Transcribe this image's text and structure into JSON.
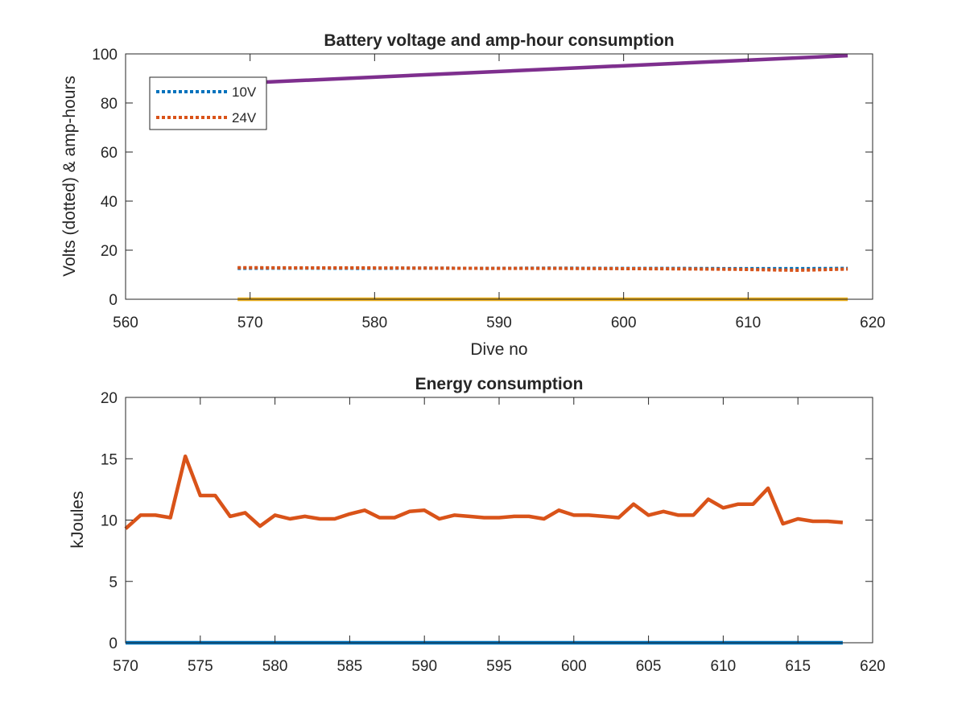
{
  "chart_data": [
    {
      "type": "line",
      "title": "Battery voltage and amp-hour consumption",
      "xlabel": "Dive no",
      "ylabel": "Volts (dotted) & amp-hours",
      "xlim": [
        560,
        620
      ],
      "ylim": [
        0,
        100
      ],
      "xticks": [
        560,
        570,
        580,
        590,
        600,
        610,
        620
      ],
      "yticks": [
        0,
        20,
        40,
        60,
        80,
        100
      ],
      "grid": false,
      "legend_position": "top-left",
      "series": [
        {
          "name": "10V",
          "style": "dotted",
          "color": "#0072BD",
          "in_legend": true,
          "x": [
            569,
            574,
            579,
            584,
            589,
            594,
            599,
            604,
            609,
            614,
            618
          ],
          "y": [
            12.6,
            12.7,
            12.6,
            12.7,
            12.6,
            12.7,
            12.6,
            12.6,
            12.5,
            12.5,
            12.6
          ]
        },
        {
          "name": "24V",
          "style": "dotted",
          "color": "#D95319",
          "in_legend": true,
          "x": [
            569,
            574,
            579,
            584,
            589,
            594,
            599,
            604,
            609,
            614,
            618
          ],
          "y": [
            12.9,
            12.8,
            12.8,
            12.7,
            12.6,
            12.6,
            12.5,
            12.4,
            12.2,
            11.8,
            12.3
          ]
        },
        {
          "style": "solid",
          "color": "#7E2F8E",
          "in_legend": false,
          "x": [
            569,
            618
          ],
          "y": [
            88,
            99.3
          ]
        },
        {
          "style": "solid",
          "color": "#EDB120",
          "in_legend": false,
          "x": [
            569,
            618
          ],
          "y": [
            0,
            0
          ]
        }
      ]
    },
    {
      "type": "line",
      "title": "Energy consumption",
      "xlabel": "",
      "ylabel": "kJoules",
      "xlim": [
        570,
        620
      ],
      "ylim": [
        0,
        20
      ],
      "xticks": [
        570,
        575,
        580,
        585,
        590,
        595,
        600,
        605,
        610,
        615,
        620
      ],
      "yticks": [
        0,
        5,
        10,
        15,
        20
      ],
      "grid": false,
      "series": [
        {
          "style": "solid",
          "color": "#D95319",
          "x": [
            570,
            571,
            572,
            573,
            574,
            575,
            576,
            577,
            578,
            579,
            580,
            581,
            582,
            583,
            584,
            585,
            586,
            587,
            588,
            589,
            590,
            591,
            592,
            593,
            594,
            595,
            596,
            597,
            598,
            599,
            600,
            601,
            602,
            603,
            604,
            605,
            606,
            607,
            608,
            609,
            610,
            611,
            612,
            613,
            614,
            615,
            616,
            617,
            618
          ],
          "y": [
            9.3,
            10.4,
            10.4,
            10.2,
            15.2,
            12.0,
            12.0,
            10.3,
            10.6,
            9.5,
            10.4,
            10.1,
            10.3,
            10.1,
            10.1,
            10.5,
            10.8,
            10.2,
            10.2,
            10.7,
            10.8,
            10.1,
            10.4,
            10.3,
            10.2,
            10.2,
            10.3,
            10.3,
            10.1,
            10.8,
            10.4,
            10.4,
            10.3,
            10.2,
            11.3,
            10.4,
            10.7,
            10.4,
            10.4,
            11.7,
            11.0,
            11.3,
            11.3,
            12.6,
            9.7,
            10.1,
            9.9,
            9.9,
            9.8
          ]
        },
        {
          "style": "solid",
          "color": "#0072BD",
          "x": [
            570,
            618
          ],
          "y": [
            0,
            0
          ]
        }
      ]
    }
  ]
}
